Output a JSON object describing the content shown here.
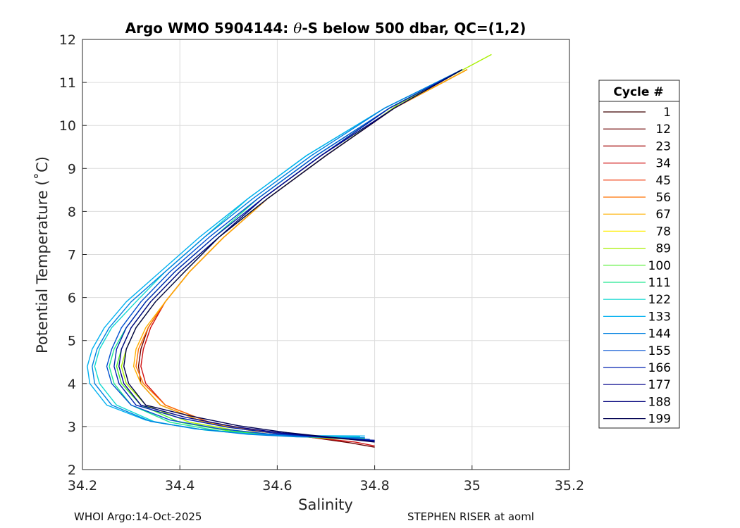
{
  "chart_data": {
    "type": "line",
    "title_prefix": "Argo WMO 5904144: ",
    "title_theta": "θ",
    "title_suffix": "-S below 500 dbar,  QC=(1,2)",
    "xlabel": "Salinity",
    "ylabel": "Potential Temperature (˚C)",
    "xlim": [
      34.2,
      35.2
    ],
    "ylim": [
      2,
      12
    ],
    "xticks": [
      34.2,
      34.4,
      34.6,
      34.8,
      35,
      35.2
    ],
    "xtick_labels": [
      "34.2",
      "34.4",
      "34.6",
      "34.8",
      "35",
      "35.2"
    ],
    "yticks": [
      2,
      3,
      4,
      5,
      6,
      7,
      8,
      9,
      10,
      11,
      12
    ],
    "ytick_labels": [
      "2",
      "3",
      "4",
      "5",
      "6",
      "7",
      "8",
      "9",
      "10",
      "11",
      "12"
    ],
    "grid": true,
    "legend_title": "Cycle #",
    "legend_placement": "right",
    "legend_entries": [
      {
        "label": "1",
        "color": "#3d0000"
      },
      {
        "label": "12",
        "color": "#6b0000"
      },
      {
        "label": "23",
        "color": "#a00000"
      },
      {
        "label": "34",
        "color": "#d01010"
      },
      {
        "label": "45",
        "color": "#f03000"
      },
      {
        "label": "56",
        "color": "#ff7000"
      },
      {
        "label": "67",
        "color": "#ffb000"
      },
      {
        "label": "78",
        "color": "#ffee00"
      },
      {
        "label": "89",
        "color": "#a8f000"
      },
      {
        "label": "100",
        "color": "#50ef30"
      },
      {
        "label": "111",
        "color": "#20e890"
      },
      {
        "label": "122",
        "color": "#10d8d0"
      },
      {
        "label": "133",
        "color": "#00b0f0"
      },
      {
        "label": "144",
        "color": "#0080e0"
      },
      {
        "label": "155",
        "color": "#0050d0"
      },
      {
        "label": "166",
        "color": "#0020b0"
      },
      {
        "label": "177",
        "color": "#00008a"
      },
      {
        "label": "188",
        "color": "#0a0a80"
      },
      {
        "label": "199",
        "color": "#000050"
      }
    ],
    "series": [
      {
        "color": "#6b0000",
        "x": [
          34.99,
          34.84,
          34.7,
          34.58,
          34.49,
          34.42,
          34.37,
          34.335,
          34.32,
          34.315,
          34.32,
          34.36,
          34.45,
          34.55,
          34.65,
          34.75,
          34.8
        ],
        "y": [
          11.3,
          10.4,
          9.3,
          8.3,
          7.4,
          6.6,
          5.9,
          5.3,
          4.8,
          4.4,
          4.0,
          3.5,
          3.1,
          2.9,
          2.78,
          2.62,
          2.52
        ]
      },
      {
        "color": "#d01010",
        "x": [
          34.99,
          34.84,
          34.7,
          34.58,
          34.49,
          34.42,
          34.37,
          34.34,
          34.325,
          34.32,
          34.33,
          34.37,
          34.46,
          34.56,
          34.66,
          34.76,
          34.8
        ],
        "y": [
          11.3,
          10.4,
          9.3,
          8.3,
          7.4,
          6.6,
          5.9,
          5.3,
          4.8,
          4.4,
          4.0,
          3.5,
          3.1,
          2.9,
          2.76,
          2.64,
          2.55
        ]
      },
      {
        "color": "#ff7000",
        "x": [
          34.99,
          34.84,
          34.7,
          34.58,
          34.49,
          34.42,
          34.37,
          34.335,
          34.315,
          34.31,
          34.325,
          34.37,
          34.46,
          34.56,
          34.66,
          34.76,
          34.8
        ],
        "y": [
          11.3,
          10.4,
          9.3,
          8.3,
          7.4,
          6.6,
          5.9,
          5.3,
          4.8,
          4.4,
          4.0,
          3.5,
          3.1,
          2.9,
          2.76,
          2.7,
          2.68
        ]
      },
      {
        "color": "#ffb000",
        "x": [
          34.99,
          34.84,
          34.7,
          34.58,
          34.49,
          34.42,
          34.37,
          34.33,
          34.31,
          34.305,
          34.32,
          34.36,
          34.45,
          34.55,
          34.65,
          34.75,
          34.79
        ],
        "y": [
          11.3,
          10.4,
          9.3,
          8.3,
          7.4,
          6.6,
          5.9,
          5.3,
          4.8,
          4.4,
          4.0,
          3.5,
          3.1,
          2.9,
          2.78,
          2.7,
          2.69
        ]
      },
      {
        "color": "#a8f000",
        "x": [
          35.04,
          34.85,
          34.7,
          34.58,
          34.48,
          34.41,
          34.35,
          34.31,
          34.29,
          34.28,
          34.29,
          34.33,
          34.42,
          34.52,
          34.62,
          34.72,
          34.78
        ],
        "y": [
          11.65,
          10.5,
          9.3,
          8.3,
          7.4,
          6.6,
          5.9,
          5.3,
          4.8,
          4.4,
          4.0,
          3.5,
          3.1,
          2.9,
          2.78,
          2.72,
          2.7
        ]
      },
      {
        "color": "#50ef30",
        "x": [
          34.98,
          34.83,
          34.69,
          34.57,
          34.48,
          34.4,
          34.34,
          34.3,
          34.28,
          34.27,
          34.28,
          34.32,
          34.4,
          34.5,
          34.6,
          34.7,
          34.78
        ],
        "y": [
          11.3,
          10.4,
          9.3,
          8.3,
          7.4,
          6.6,
          5.9,
          5.3,
          4.8,
          4.4,
          4.0,
          3.5,
          3.1,
          2.9,
          2.8,
          2.74,
          2.72
        ]
      },
      {
        "color": "#20e890",
        "x": [
          34.98,
          34.83,
          34.68,
          34.56,
          34.47,
          34.39,
          34.33,
          34.29,
          34.265,
          34.255,
          34.265,
          34.3,
          34.38,
          34.48,
          34.58,
          34.68,
          34.77
        ],
        "y": [
          11.3,
          10.4,
          9.3,
          8.3,
          7.4,
          6.6,
          5.9,
          5.3,
          4.8,
          4.4,
          4.0,
          3.5,
          3.1,
          2.9,
          2.8,
          2.76,
          2.74
        ]
      },
      {
        "color": "#10d8d0",
        "x": [
          34.98,
          34.82,
          34.66,
          34.54,
          34.45,
          34.37,
          34.31,
          34.26,
          34.235,
          34.225,
          34.235,
          34.27,
          34.35,
          34.45,
          34.55,
          34.65,
          34.77
        ],
        "y": [
          11.3,
          10.4,
          9.3,
          8.3,
          7.4,
          6.6,
          5.9,
          5.3,
          4.8,
          4.4,
          4.0,
          3.5,
          3.1,
          2.92,
          2.82,
          2.78,
          2.76
        ]
      },
      {
        "color": "#00b0f0",
        "x": [
          34.98,
          34.82,
          34.66,
          34.54,
          34.44,
          34.36,
          34.29,
          34.245,
          34.22,
          34.21,
          34.215,
          34.25,
          34.33,
          34.43,
          34.53,
          34.63,
          34.78
        ],
        "y": [
          11.3,
          10.4,
          9.3,
          8.3,
          7.4,
          6.6,
          5.9,
          5.3,
          4.8,
          4.4,
          4.0,
          3.5,
          3.15,
          2.95,
          2.84,
          2.79,
          2.78
        ]
      },
      {
        "color": "#0080e0",
        "x": [
          34.98,
          34.82,
          34.67,
          34.55,
          34.45,
          34.37,
          34.3,
          34.255,
          34.23,
          34.22,
          34.225,
          34.26,
          34.34,
          34.44,
          34.54,
          34.64,
          34.78
        ],
        "y": [
          11.3,
          10.4,
          9.3,
          8.3,
          7.4,
          6.6,
          5.9,
          5.3,
          4.8,
          4.4,
          4.0,
          3.5,
          3.12,
          2.94,
          2.82,
          2.76,
          2.74
        ]
      },
      {
        "color": "#0050d0",
        "x": [
          34.98,
          34.83,
          34.68,
          34.56,
          34.46,
          34.38,
          34.32,
          34.28,
          34.26,
          34.25,
          34.26,
          34.3,
          34.38,
          34.48,
          34.58,
          34.68,
          34.79
        ],
        "y": [
          11.3,
          10.4,
          9.3,
          8.3,
          7.4,
          6.6,
          5.9,
          5.3,
          4.8,
          4.4,
          4.0,
          3.5,
          3.15,
          2.95,
          2.83,
          2.76,
          2.7
        ]
      },
      {
        "color": "#0020b0",
        "x": [
          34.98,
          34.83,
          34.69,
          34.57,
          34.47,
          34.39,
          34.33,
          34.29,
          34.27,
          34.265,
          34.275,
          34.31,
          34.4,
          34.5,
          34.6,
          34.7,
          34.8
        ],
        "y": [
          11.3,
          10.4,
          9.3,
          8.3,
          7.4,
          6.6,
          5.9,
          5.3,
          4.8,
          4.4,
          4.0,
          3.5,
          3.2,
          2.98,
          2.84,
          2.75,
          2.68
        ]
      },
      {
        "color": "#00008a",
        "x": [
          34.98,
          34.84,
          34.69,
          34.57,
          34.48,
          34.4,
          34.34,
          34.3,
          34.28,
          34.275,
          34.285,
          34.32,
          34.41,
          34.51,
          34.61,
          34.71,
          34.8
        ],
        "y": [
          11.3,
          10.4,
          9.3,
          8.3,
          7.4,
          6.6,
          5.9,
          5.3,
          4.8,
          4.4,
          4.0,
          3.5,
          3.22,
          3.0,
          2.85,
          2.74,
          2.66
        ]
      },
      {
        "color": "#000050",
        "x": [
          34.98,
          34.84,
          34.7,
          34.58,
          34.48,
          34.41,
          34.35,
          34.31,
          34.29,
          34.285,
          34.295,
          34.33,
          34.42,
          34.52,
          34.62,
          34.72,
          34.8
        ],
        "y": [
          11.3,
          10.4,
          9.3,
          8.3,
          7.4,
          6.6,
          5.9,
          5.3,
          4.8,
          4.4,
          4.0,
          3.5,
          3.25,
          3.02,
          2.86,
          2.74,
          2.64
        ]
      }
    ]
  },
  "footer": {
    "left": "WHOI Argo:14-Oct-2025",
    "right": "STEPHEN RISER at aoml"
  }
}
